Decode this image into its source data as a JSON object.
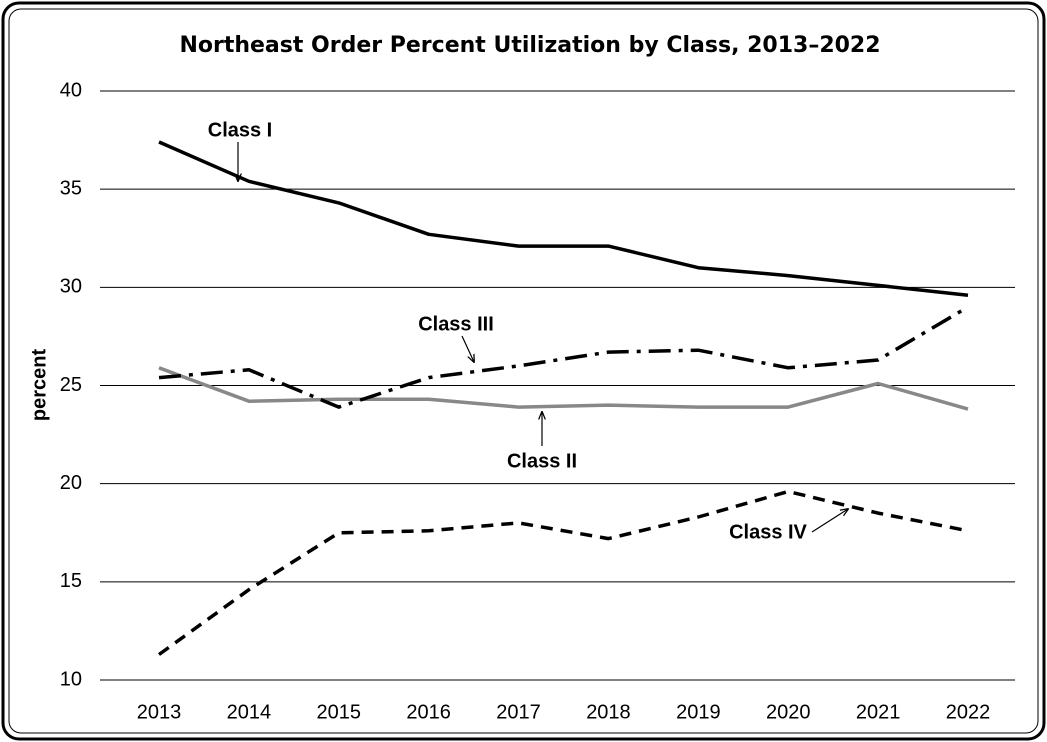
{
  "chart_data": {
    "type": "line",
    "title": "Northeast Order Percent Utilization by Class, 2013–2022",
    "y_label": "percent",
    "categories": [
      "2013",
      "2014",
      "2015",
      "2016",
      "2017",
      "2018",
      "2019",
      "2020",
      "2021",
      "2022"
    ],
    "series": [
      {
        "name": "Class I",
        "color": "#000000",
        "style": "solid",
        "values": [
          37.4,
          35.4,
          34.3,
          32.7,
          32.1,
          32.1,
          31.0,
          30.6,
          30.1,
          29.6
        ]
      },
      {
        "name": "Class II",
        "color": "#888888",
        "style": "solid",
        "values": [
          25.9,
          24.2,
          24.3,
          24.3,
          23.9,
          24.0,
          23.9,
          23.9,
          25.1,
          23.8
        ]
      },
      {
        "name": "Class III",
        "color": "#000000",
        "style": "dashdot",
        "values": [
          25.4,
          25.8,
          23.9,
          25.4,
          26.0,
          26.7,
          26.8,
          25.9,
          26.3,
          29.0
        ]
      },
      {
        "name": "Class IV",
        "color": "#000000",
        "style": "dashed",
        "values": [
          11.3,
          14.6,
          17.5,
          17.6,
          18.0,
          17.2,
          18.3,
          19.6,
          18.5,
          17.6
        ]
      }
    ],
    "ylim": [
      10,
      40
    ],
    "yticks": [
      10,
      15,
      20,
      25,
      30,
      35,
      40
    ],
    "grid": true
  }
}
